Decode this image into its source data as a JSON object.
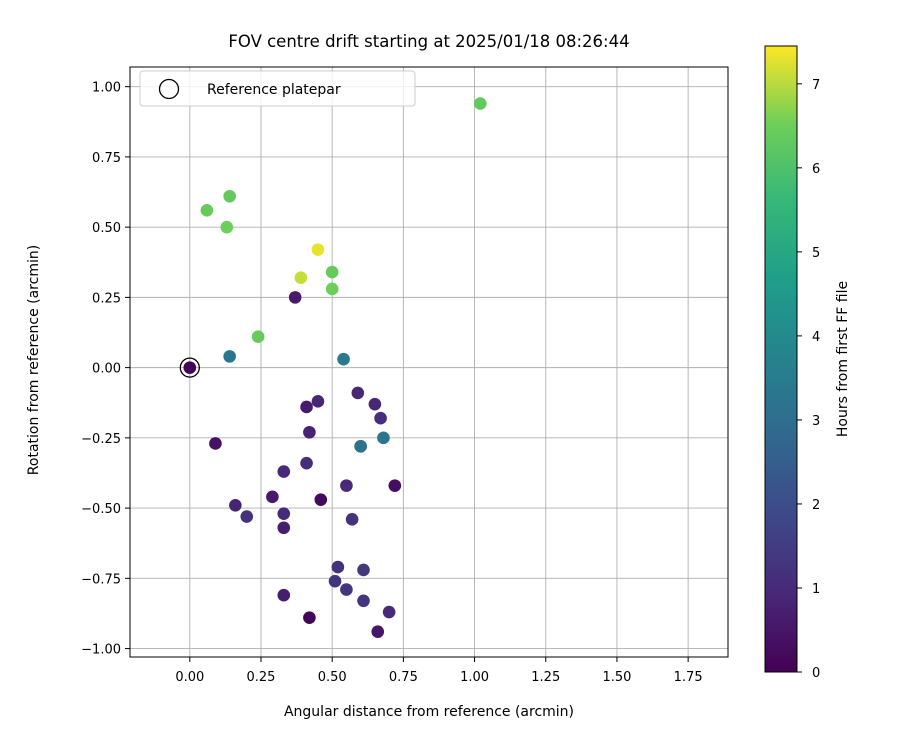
{
  "chart_data": {
    "type": "scatter",
    "title": "FOV centre drift starting at 2025/01/18 08:26:44",
    "xlabel": "Angular distance from reference (arcmin)",
    "ylabel": "Rotation from reference (arcmin)",
    "xlim": [
      -0.21,
      1.89
    ],
    "ylim": [
      -1.03,
      1.07
    ],
    "xticks": [
      0.0,
      0.25,
      0.5,
      0.75,
      1.0,
      1.25,
      1.5,
      1.75
    ],
    "xtick_labels": [
      "0.00",
      "0.25",
      "0.50",
      "0.75",
      "1.00",
      "1.25",
      "1.50",
      "1.75"
    ],
    "yticks": [
      1.0,
      0.75,
      0.5,
      0.25,
      0.0,
      -0.25,
      -0.5,
      -0.75,
      -1.0
    ],
    "ytick_labels": [
      "1.00",
      "0.75",
      "0.50",
      "0.25",
      "0.00",
      "−0.25",
      "−0.50",
      "−0.75",
      "−1.00"
    ],
    "grid": true,
    "legend": {
      "position": "top-left",
      "entries": [
        "Reference platepar"
      ]
    },
    "colorbar": {
      "label": "Hours from first FF file",
      "colormap": "viridis",
      "range": [
        0,
        7.45
      ],
      "ticks": [
        0,
        1,
        2,
        3,
        4,
        5,
        6,
        7
      ],
      "tick_labels": [
        "0",
        "1",
        "2",
        "3",
        "4",
        "5",
        "6",
        "7"
      ]
    },
    "reference_point": {
      "x": 0.0,
      "y": 0.0
    },
    "points": [
      {
        "x": 0.0,
        "y": 0.0,
        "c": 0.1
      },
      {
        "x": 0.42,
        "y": -0.89,
        "c": 0.1
      },
      {
        "x": 0.46,
        "y": -0.47,
        "c": 0.2
      },
      {
        "x": 0.72,
        "y": -0.42,
        "c": 0.3
      },
      {
        "x": 0.09,
        "y": -0.27,
        "c": 0.4
      },
      {
        "x": 0.66,
        "y": -0.94,
        "c": 0.5
      },
      {
        "x": 0.37,
        "y": 0.25,
        "c": 0.6
      },
      {
        "x": 0.41,
        "y": -0.14,
        "c": 0.6
      },
      {
        "x": 0.29,
        "y": -0.46,
        "c": 0.6
      },
      {
        "x": 0.33,
        "y": -0.57,
        "c": 0.7
      },
      {
        "x": 0.33,
        "y": -0.81,
        "c": 0.7
      },
      {
        "x": 0.42,
        "y": -0.23,
        "c": 0.8
      },
      {
        "x": 0.16,
        "y": -0.49,
        "c": 0.8
      },
      {
        "x": 0.45,
        "y": -0.12,
        "c": 0.9
      },
      {
        "x": 0.59,
        "y": -0.09,
        "c": 0.9
      },
      {
        "x": 0.65,
        "y": -0.13,
        "c": 0.9
      },
      {
        "x": 0.33,
        "y": -0.37,
        "c": 1.0
      },
      {
        "x": 0.33,
        "y": -0.52,
        "c": 1.0
      },
      {
        "x": 0.55,
        "y": -0.42,
        "c": 1.0
      },
      {
        "x": 0.7,
        "y": -0.87,
        "c": 1.0
      },
      {
        "x": 0.67,
        "y": -0.18,
        "c": 1.1
      },
      {
        "x": 0.41,
        "y": -0.34,
        "c": 1.1
      },
      {
        "x": 0.2,
        "y": -0.53,
        "c": 1.2
      },
      {
        "x": 0.57,
        "y": -0.54,
        "c": 1.2
      },
      {
        "x": 0.52,
        "y": -0.71,
        "c": 1.2
      },
      {
        "x": 0.51,
        "y": -0.76,
        "c": 1.3
      },
      {
        "x": 0.55,
        "y": -0.79,
        "c": 1.3
      },
      {
        "x": 0.61,
        "y": -0.83,
        "c": 1.3
      },
      {
        "x": 0.61,
        "y": -0.72,
        "c": 1.4
      },
      {
        "x": 0.6,
        "y": -0.28,
        "c": 1.5
      },
      {
        "x": 0.6,
        "y": -0.28,
        "c": 3.2
      },
      {
        "x": 0.68,
        "y": -0.25,
        "c": 3.3
      },
      {
        "x": 0.14,
        "y": 0.04,
        "c": 3.3
      },
      {
        "x": 0.54,
        "y": 0.03,
        "c": 3.4
      },
      {
        "x": 0.14,
        "y": 0.61,
        "c": 6.3
      },
      {
        "x": 0.06,
        "y": 0.56,
        "c": 6.4
      },
      {
        "x": 0.13,
        "y": 0.5,
        "c": 6.5
      },
      {
        "x": 0.24,
        "y": 0.11,
        "c": 6.4
      },
      {
        "x": 0.5,
        "y": 0.34,
        "c": 6.4
      },
      {
        "x": 0.5,
        "y": 0.28,
        "c": 6.5
      },
      {
        "x": 1.02,
        "y": 0.94,
        "c": 6.3
      },
      {
        "x": 0.39,
        "y": 0.32,
        "c": 7.1
      },
      {
        "x": 0.45,
        "y": 0.42,
        "c": 7.3
      }
    ]
  }
}
